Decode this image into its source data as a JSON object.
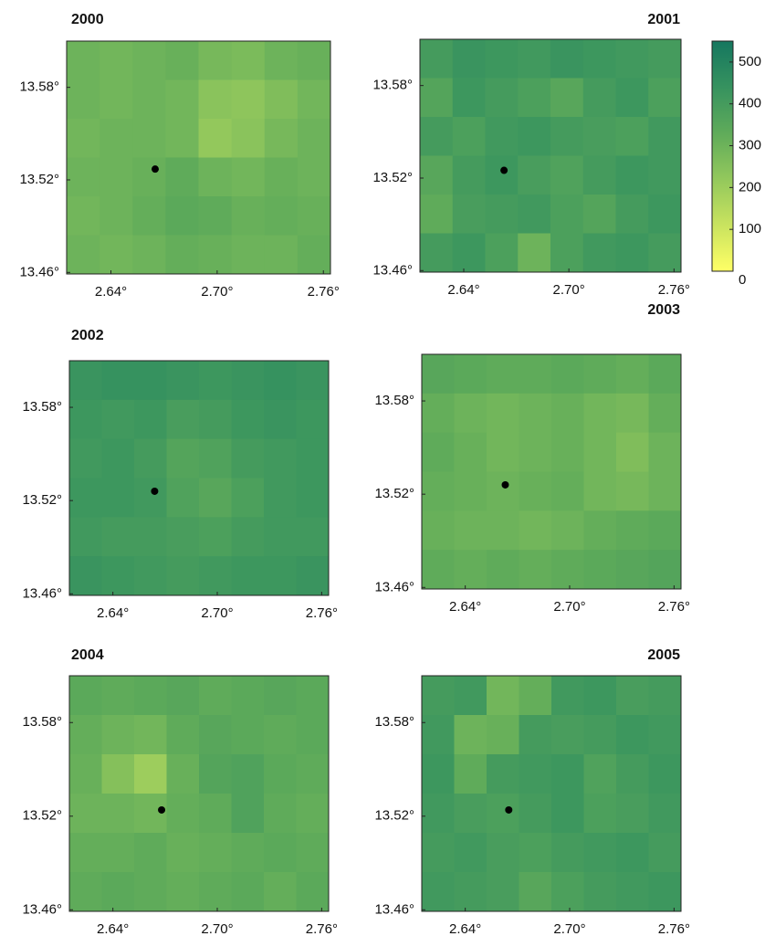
{
  "chart_data": [
    {
      "type": "heatmap",
      "title": "2000",
      "xlim": [
        2.615,
        2.764
      ],
      "ylim": [
        13.459,
        13.61
      ],
      "xticks": [
        {
          "value": 2.64,
          "label": "2.64°"
        },
        {
          "value": 2.7,
          "label": "2.70°"
        },
        {
          "value": 2.76,
          "label": "2.76°"
        }
      ],
      "yticks": [
        {
          "value": 13.46,
          "label": "13.46°"
        },
        {
          "value": 13.52,
          "label": "13.52°"
        },
        {
          "value": 13.58,
          "label": "13.58°"
        }
      ],
      "point": {
        "x": 2.665,
        "y": 13.527
      },
      "values": [
        [
          300,
          290,
          300,
          310,
          280,
          270,
          300,
          310
        ],
        [
          300,
          290,
          300,
          290,
          240,
          230,
          260,
          290
        ],
        [
          290,
          300,
          300,
          290,
          220,
          240,
          280,
          300
        ],
        [
          300,
          300,
          310,
          330,
          300,
          290,
          310,
          300
        ],
        [
          290,
          300,
          320,
          340,
          330,
          310,
          320,
          310
        ],
        [
          300,
          290,
          300,
          320,
          310,
          300,
          300,
          320
        ]
      ]
    },
    {
      "type": "heatmap",
      "title": "2001",
      "xlim": [
        2.615,
        2.764
      ],
      "ylim": [
        13.459,
        13.61
      ],
      "xticks": [
        {
          "value": 2.64,
          "label": "2.64°"
        },
        {
          "value": 2.7,
          "label": "2.70°"
        },
        {
          "value": 2.76,
          "label": "2.76°"
        }
      ],
      "yticks": [
        {
          "value": 13.46,
          "label": "13.46°"
        },
        {
          "value": 13.52,
          "label": "13.52°"
        },
        {
          "value": 13.58,
          "label": "13.58°"
        }
      ],
      "point": {
        "x": 2.663,
        "y": 13.525
      },
      "values": [
        [
          400,
          430,
          420,
          410,
          430,
          420,
          410,
          400
        ],
        [
          360,
          420,
          400,
          380,
          350,
          400,
          420,
          380
        ],
        [
          400,
          380,
          410,
          420,
          400,
          390,
          380,
          410
        ],
        [
          350,
          400,
          420,
          390,
          370,
          400,
          420,
          410
        ],
        [
          330,
          390,
          400,
          410,
          380,
          360,
          400,
          420
        ],
        [
          400,
          420,
          380,
          300,
          380,
          410,
          420,
          400
        ]
      ]
    },
    {
      "type": "heatmap",
      "title": "2002",
      "xlim": [
        2.615,
        2.764
      ],
      "ylim": [
        13.459,
        13.61
      ],
      "xticks": [
        {
          "value": 2.64,
          "label": "2.64°"
        },
        {
          "value": 2.7,
          "label": "2.70°"
        },
        {
          "value": 2.76,
          "label": "2.76°"
        }
      ],
      "yticks": [
        {
          "value": 13.46,
          "label": "13.46°"
        },
        {
          "value": 13.52,
          "label": "13.52°"
        },
        {
          "value": 13.58,
          "label": "13.58°"
        }
      ],
      "point": {
        "x": 2.664,
        "y": 13.526
      },
      "values": [
        [
          430,
          440,
          440,
          430,
          420,
          430,
          440,
          430
        ],
        [
          420,
          410,
          420,
          390,
          400,
          420,
          430,
          420
        ],
        [
          410,
          420,
          400,
          360,
          370,
          400,
          410,
          420
        ],
        [
          420,
          420,
          410,
          370,
          350,
          380,
          410,
          420
        ],
        [
          410,
          400,
          400,
          390,
          380,
          400,
          410,
          410
        ],
        [
          430,
          420,
          410,
          400,
          410,
          420,
          420,
          430
        ]
      ]
    },
    {
      "type": "heatmap",
      "title": "2003",
      "xlim": [
        2.615,
        2.764
      ],
      "ylim": [
        13.459,
        13.61
      ],
      "xticks": [
        {
          "value": 2.64,
          "label": "2.64°"
        },
        {
          "value": 2.7,
          "label": "2.70°"
        },
        {
          "value": 2.76,
          "label": "2.76°"
        }
      ],
      "yticks": [
        {
          "value": 13.46,
          "label": "13.46°"
        },
        {
          "value": 13.52,
          "label": "13.52°"
        },
        {
          "value": 13.58,
          "label": "13.58°"
        }
      ],
      "point": {
        "x": 2.663,
        "y": 13.526
      },
      "values": [
        [
          350,
          340,
          330,
          330,
          340,
          330,
          320,
          340
        ],
        [
          320,
          300,
          290,
          300,
          310,
          290,
          280,
          320
        ],
        [
          330,
          310,
          290,
          300,
          310,
          290,
          260,
          300
        ],
        [
          320,
          310,
          300,
          310,
          320,
          290,
          280,
          300
        ],
        [
          310,
          300,
          300,
          290,
          300,
          320,
          330,
          340
        ],
        [
          330,
          320,
          330,
          320,
          330,
          340,
          350,
          360
        ]
      ]
    },
    {
      "type": "heatmap",
      "title": "2004",
      "xlim": [
        2.615,
        2.764
      ],
      "ylim": [
        13.459,
        13.61
      ],
      "xticks": [
        {
          "value": 2.64,
          "label": "2.64°"
        },
        {
          "value": 2.7,
          "label": "2.70°"
        },
        {
          "value": 2.76,
          "label": "2.76°"
        }
      ],
      "yticks": [
        {
          "value": 13.46,
          "label": "13.46°"
        },
        {
          "value": 13.52,
          "label": "13.52°"
        },
        {
          "value": 13.58,
          "label": "13.58°"
        }
      ],
      "point": {
        "x": 2.668,
        "y": 13.524
      },
      "values": [
        [
          340,
          330,
          340,
          350,
          330,
          340,
          350,
          340
        ],
        [
          320,
          300,
          290,
          330,
          350,
          340,
          330,
          340
        ],
        [
          310,
          250,
          200,
          310,
          360,
          370,
          340,
          330
        ],
        [
          300,
          300,
          290,
          320,
          330,
          370,
          330,
          320
        ],
        [
          320,
          320,
          330,
          310,
          320,
          330,
          340,
          330
        ],
        [
          330,
          340,
          330,
          320,
          330,
          340,
          320,
          340
        ]
      ]
    },
    {
      "type": "heatmap",
      "title": "2005",
      "xlim": [
        2.615,
        2.764
      ],
      "ylim": [
        13.459,
        13.61
      ],
      "xticks": [
        {
          "value": 2.64,
          "label": "2.64°"
        },
        {
          "value": 2.7,
          "label": "2.70°"
        },
        {
          "value": 2.76,
          "label": "2.76°"
        }
      ],
      "yticks": [
        {
          "value": 13.46,
          "label": "13.46°"
        },
        {
          "value": 13.52,
          "label": "13.52°"
        },
        {
          "value": 13.58,
          "label": "13.58°"
        }
      ],
      "point": {
        "x": 2.665,
        "y": 13.524
      },
      "values": [
        [
          400,
          410,
          290,
          320,
          410,
          420,
          390,
          400
        ],
        [
          410,
          300,
          310,
          400,
          390,
          400,
          420,
          410
        ],
        [
          420,
          330,
          400,
          410,
          420,
          370,
          400,
          420
        ],
        [
          410,
          390,
          380,
          400,
          420,
          380,
          390,
          410
        ],
        [
          400,
          410,
          390,
          380,
          400,
          410,
          420,
          400
        ],
        [
          410,
          400,
          390,
          350,
          380,
          400,
          410,
          420
        ]
      ]
    },
    {
      "type": "colorbar",
      "clim": [
        0,
        550
      ],
      "ticks": [
        0,
        100,
        200,
        300,
        400,
        500
      ],
      "colors": [
        "#ffff66",
        "#c9e35f",
        "#93c85c",
        "#5fab5a",
        "#36925f",
        "#15775f"
      ]
    }
  ]
}
